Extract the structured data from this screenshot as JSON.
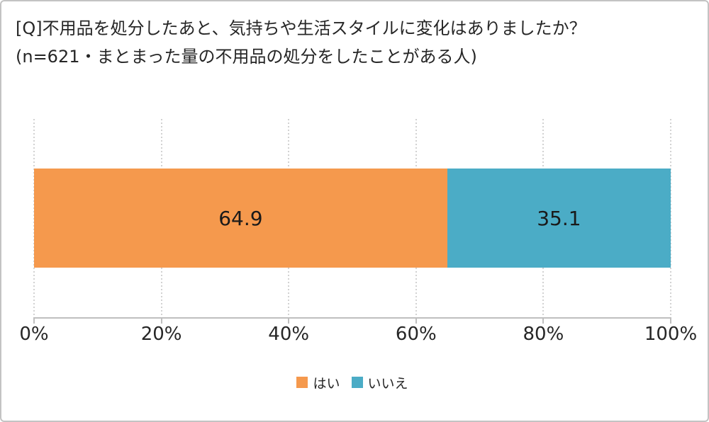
{
  "header": {
    "title": "[Q]不用品を処分したあと、気持ちや生活スタイルに変化はありましたか？",
    "subtitle": "(n=621・まとまった量の不用品の処分をしたことがある人)"
  },
  "chart_data": {
    "type": "bar",
    "orientation": "horizontal",
    "stacked": true,
    "title": "[Q]不用品を処分したあと、気持ちや生活スタイルに変化はありましたか？",
    "subtitle": "(n=621・まとまった量の不用品の処分をしたことがある人)",
    "unit": "%",
    "xlim": [
      0,
      100
    ],
    "x_ticks": [
      "0%",
      "20%",
      "40%",
      "60%",
      "80%",
      "100%"
    ],
    "grid": "vertical-dotted",
    "legend_position": "bottom",
    "series": [
      {
        "name": "はい",
        "value": 64.9,
        "label": "64.9",
        "color": "#F5994D"
      },
      {
        "name": "いいえ",
        "value": 35.1,
        "label": "35.1",
        "color": "#4BACC6"
      }
    ]
  },
  "colors": {
    "frame_border": "#c3c3c3",
    "axis_line": "#bfbfbf",
    "gridline": "#d2d2d2",
    "text": "#262626"
  }
}
